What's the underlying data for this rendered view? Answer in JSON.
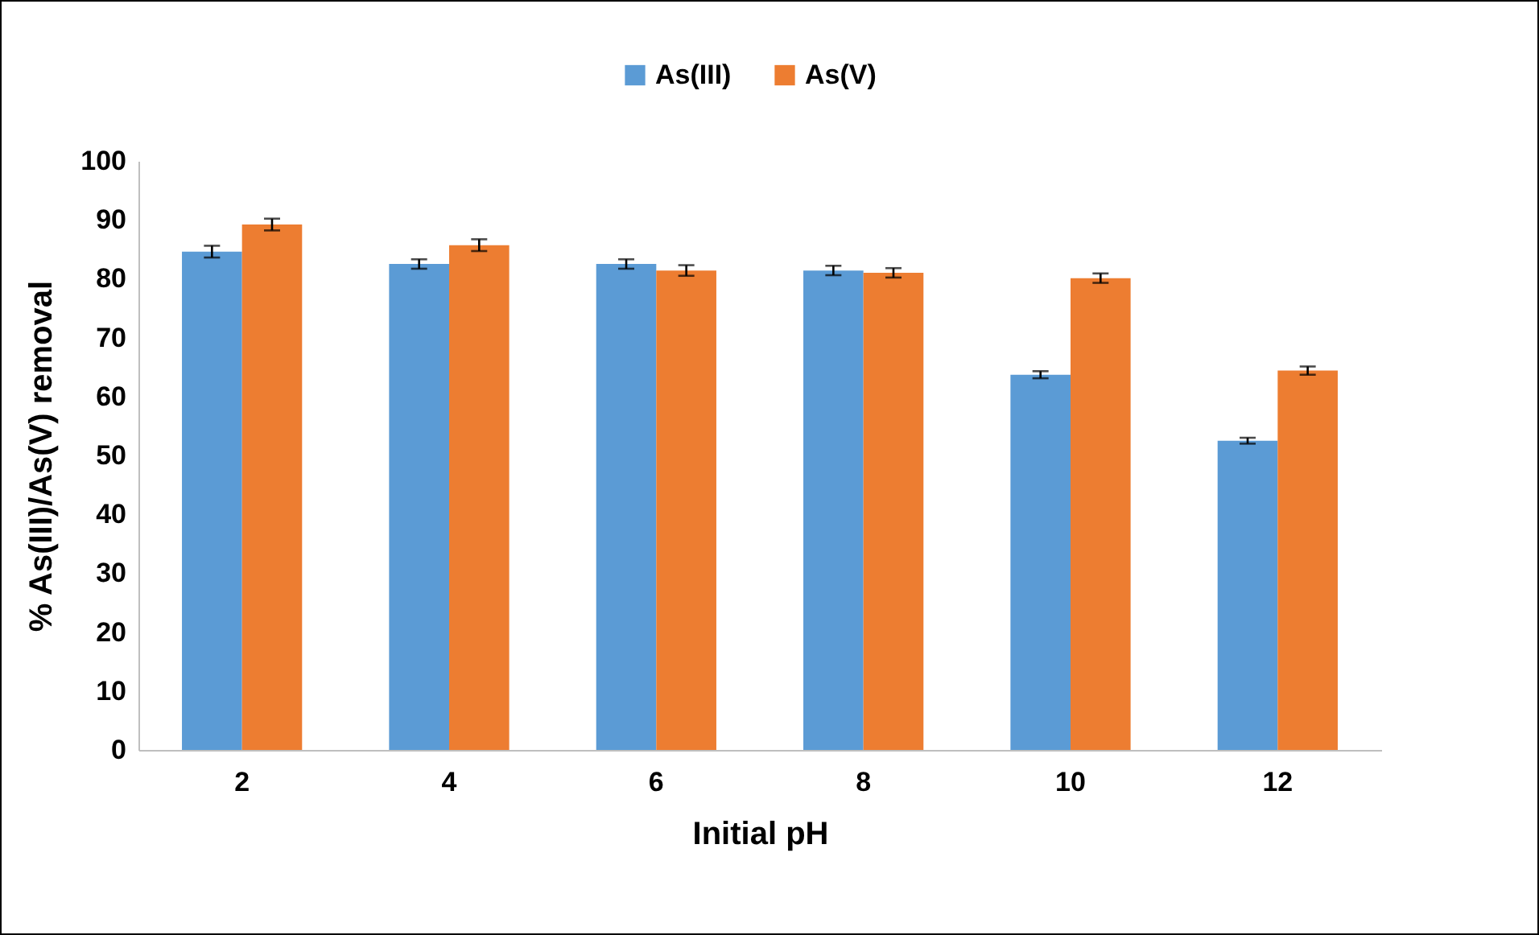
{
  "chart_data": {
    "type": "bar",
    "xlabel": "Initial pH",
    "ylabel": "% As(III)/As(V) removal",
    "categories": [
      "2",
      "4",
      "6",
      "8",
      "10",
      "12"
    ],
    "series": [
      {
        "name": "As(III)",
        "color": "#5b9bd5",
        "values": [
          84.6,
          82.5,
          82.5,
          81.4,
          63.7,
          52.5
        ],
        "errors": [
          1,
          0.8,
          0.8,
          0.8,
          0.6,
          0.5
        ]
      },
      {
        "name": "As(V)",
        "color": "#ed7d31",
        "values": [
          89.2,
          85.7,
          81.4,
          81.0,
          80.1,
          64.4
        ],
        "errors": [
          1,
          1,
          0.9,
          0.8,
          0.8,
          0.7
        ]
      }
    ],
    "ylim": [
      0,
      100
    ],
    "yticks": [
      0,
      10,
      20,
      30,
      40,
      50,
      60,
      70,
      80,
      90,
      100
    ],
    "grid": false,
    "legend": "top"
  }
}
